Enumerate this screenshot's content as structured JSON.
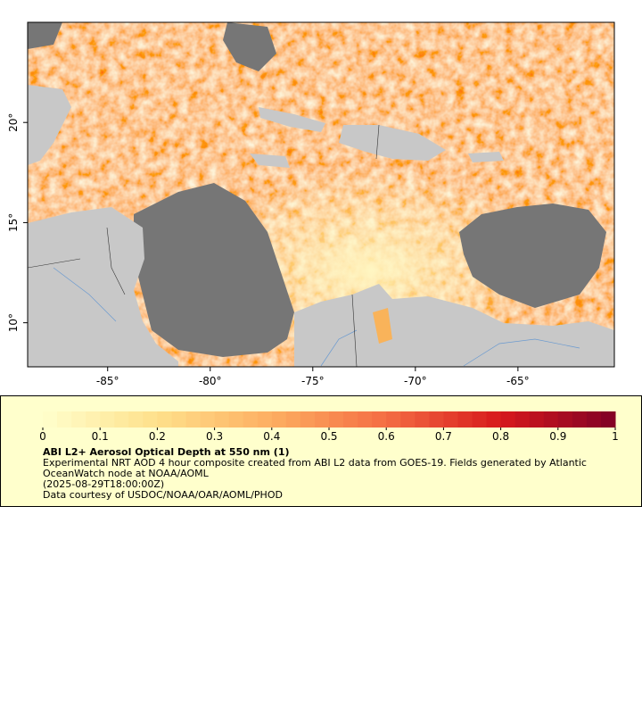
{
  "chart_data": {
    "type": "map",
    "xlim": [
      -88.9,
      -60.3
    ],
    "ylim": [
      7.8,
      25
    ],
    "xticks": [
      {
        "value": -85,
        "label": "-85°"
      },
      {
        "value": -80,
        "label": "-80°"
      },
      {
        "value": -75,
        "label": "-75°"
      },
      {
        "value": -70,
        "label": "-70°"
      },
      {
        "value": -65,
        "label": "-65°"
      }
    ],
    "yticks": [
      {
        "value": 10,
        "label": "10°"
      },
      {
        "value": 15,
        "label": "15°"
      },
      {
        "value": 20,
        "label": "20°"
      }
    ],
    "colorbar": {
      "lim": [
        0,
        1
      ],
      "ticks": [
        0,
        0.1,
        0.2,
        0.3,
        0.4,
        0.5,
        0.6,
        0.7,
        0.8,
        0.9,
        1
      ],
      "steps": 40,
      "colors": [
        "#ffffcc",
        "#fee08b",
        "#fdae61",
        "#f46d43",
        "#d7191c",
        "#800026"
      ]
    },
    "title": "ABI L2+ Aerosol Optical Depth at 550 nm (1)",
    "description": "Experimental NRT AOD 4 hour composite created from ABI L2 data from GOES-19. Fields generated by Atlantic OceanWatch node at NOAA/AOML",
    "time": "(2025-08-29T18:00:00Z)",
    "credit": "Data courtesy of USDOC/NOAA/OAR/AOML/PHOD"
  }
}
